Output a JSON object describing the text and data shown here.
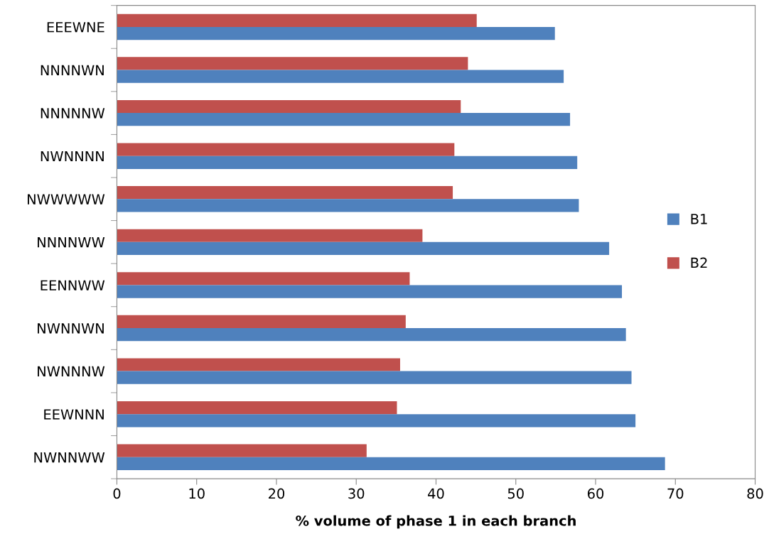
{
  "chart_data": {
    "type": "bar",
    "orientation": "horizontal",
    "xlabel": "% volume of phase 1 in each branch",
    "categories": [
      "EEEWNE",
      "NNNNWN",
      "NNNNNW",
      "NWNNNN",
      "NWWWWW",
      "NNNNWW",
      "EENNWW",
      "NWNNWN",
      "NWNNNW",
      "EEWNNN",
      "NWNNWW"
    ],
    "series": [
      {
        "name": "B2",
        "color": "#c0504d",
        "values": [
          45.1,
          44.0,
          43.1,
          42.3,
          42.1,
          38.3,
          36.7,
          36.2,
          35.5,
          35.1,
          31.3
        ]
      },
      {
        "name": "B1",
        "color": "#4f81bd",
        "values": [
          54.9,
          56.0,
          56.8,
          57.7,
          57.9,
          61.7,
          63.3,
          63.8,
          64.5,
          65.0,
          68.7
        ]
      }
    ],
    "xlim": [
      0,
      80
    ],
    "xticks": [
      0,
      10,
      20,
      30,
      40,
      50,
      60,
      70,
      80
    ],
    "grid": false,
    "legend": "right"
  }
}
